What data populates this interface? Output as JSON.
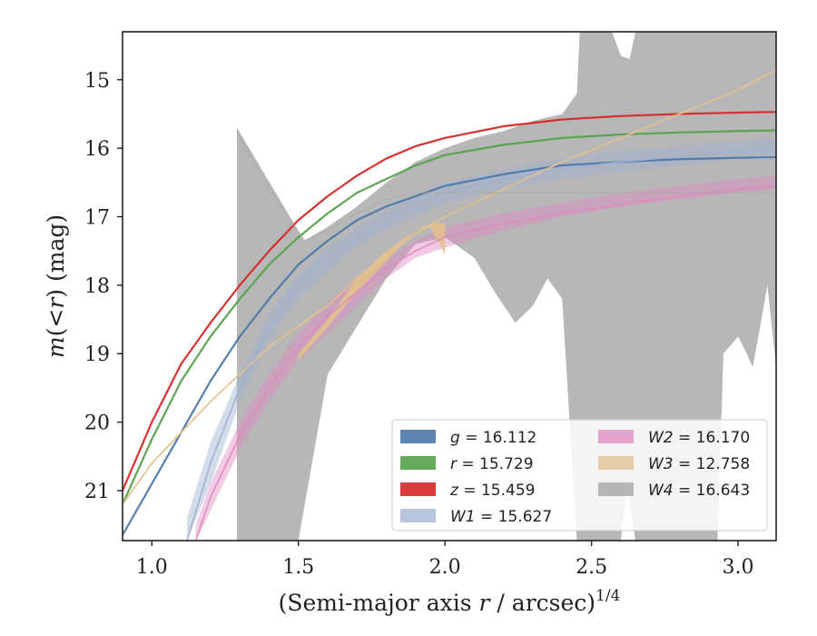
{
  "chart_data": {
    "type": "line",
    "title": "",
    "xlabel": "(Semi-major axis r / arcsec)^1/4",
    "xlabel_parts": {
      "pre": "(Semi-major axis ",
      "var": "r",
      "post": " / arcsec)",
      "exp": "1/4"
    },
    "ylabel": "m(<r) (mag)",
    "ylabel_parts": {
      "var1": "m",
      "mid": "(<",
      "var2": "r",
      "post": ") (mag)"
    },
    "xlim": [
      0.9,
      3.13
    ],
    "ylim": [
      21.73,
      14.3
    ],
    "y_inverted": true,
    "xticks": [
      1.0,
      1.5,
      2.0,
      2.5,
      3.0
    ],
    "xtick_labels": [
      "1.0",
      "1.5",
      "2.0",
      "2.5",
      "3.0"
    ],
    "yticks": [
      15,
      16,
      17,
      18,
      19,
      20,
      21
    ],
    "ytick_labels": [
      "15",
      "16",
      "17",
      "18",
      "19",
      "20",
      "21"
    ],
    "grid": false,
    "legend_placement": "lower-right",
    "legend_columns": 2,
    "series": [
      {
        "name": "g = 16.112",
        "label_var": "g",
        "label_val": "16.112",
        "color": "#4c78a8",
        "x": [
          0.9,
          1.0,
          1.1,
          1.2,
          1.3,
          1.4,
          1.5,
          1.6,
          1.7,
          1.8,
          1.9,
          2.0,
          2.2,
          2.4,
          2.6,
          2.8,
          3.0,
          3.13
        ],
        "y": [
          21.65,
          20.9,
          20.15,
          19.4,
          18.75,
          18.2,
          17.7,
          17.35,
          17.05,
          16.85,
          16.7,
          16.55,
          16.38,
          16.25,
          16.2,
          16.16,
          16.14,
          16.13
        ]
      },
      {
        "name": "r = 15.729",
        "label_var": "r",
        "label_val": "15.729",
        "color": "#54a24b",
        "x": [
          0.9,
          1.0,
          1.1,
          1.2,
          1.3,
          1.4,
          1.5,
          1.6,
          1.7,
          1.8,
          1.9,
          2.0,
          2.2,
          2.4,
          2.6,
          2.8,
          3.0,
          3.13
        ],
        "y": [
          21.2,
          20.25,
          19.4,
          18.75,
          18.2,
          17.7,
          17.3,
          16.95,
          16.65,
          16.45,
          16.25,
          16.1,
          15.95,
          15.85,
          15.8,
          15.77,
          15.75,
          15.74
        ]
      },
      {
        "name": "z = 15.459",
        "label_var": "z",
        "label_val": "15.459",
        "color": "#d62728",
        "x": [
          0.9,
          1.0,
          1.1,
          1.2,
          1.3,
          1.4,
          1.5,
          1.6,
          1.7,
          1.8,
          1.9,
          2.0,
          2.2,
          2.4,
          2.6,
          2.8,
          3.0,
          3.13
        ],
        "y": [
          21.0,
          20.0,
          19.15,
          18.55,
          18.0,
          17.5,
          17.05,
          16.7,
          16.4,
          16.15,
          15.97,
          15.85,
          15.68,
          15.58,
          15.53,
          15.5,
          15.48,
          15.47
        ]
      },
      {
        "name": "W1 = 15.627",
        "label_var": "W1",
        "label_val": "15.627",
        "color": "#9fb0d0",
        "x": [
          1.12,
          1.2,
          1.3,
          1.4,
          1.5,
          1.6,
          1.7,
          1.8,
          1.9,
          2.0,
          2.2,
          2.4,
          2.6,
          2.8,
          3.0,
          3.13
        ],
        "y": [
          21.73,
          20.6,
          19.5,
          18.6,
          18.0,
          17.6,
          17.3,
          17.05,
          16.85,
          16.65,
          16.45,
          16.3,
          16.2,
          16.12,
          16.05,
          16.0
        ]
      },
      {
        "name": "W2 = 16.170",
        "label_var": "W2",
        "label_val": "16.170",
        "color": "#e08ac0",
        "x": [
          1.15,
          1.2,
          1.3,
          1.4,
          1.5,
          1.6,
          1.7,
          1.8,
          1.9,
          2.0,
          2.2,
          2.4,
          2.6,
          2.8,
          3.0,
          3.13
        ],
        "y": [
          21.73,
          21.1,
          20.2,
          19.5,
          18.9,
          18.45,
          18.1,
          17.75,
          17.5,
          17.3,
          17.1,
          16.95,
          16.82,
          16.7,
          16.6,
          16.55
        ]
      },
      {
        "name": "W3 = 12.758",
        "label_var": "W3",
        "label_val": "12.758",
        "color": "#e3c08e",
        "x": [
          0.9,
          1.0,
          1.2,
          1.4,
          1.6,
          1.7,
          1.8,
          1.9,
          2.0,
          2.2,
          2.4,
          2.6,
          2.8,
          3.0,
          3.13
        ],
        "y": [
          21.2,
          20.6,
          19.7,
          18.9,
          18.3,
          17.9,
          17.55,
          17.25,
          17.0,
          16.6,
          16.2,
          15.85,
          15.5,
          15.15,
          14.85
        ]
      },
      {
        "name": "W4 = 16.643",
        "label_var": "W4",
        "label_val": "16.643",
        "color": "#aaaaaa",
        "x": [
          1.29,
          1.4,
          1.52,
          1.6,
          1.7,
          1.8,
          1.9,
          2.0,
          2.2,
          2.4,
          2.6,
          2.8,
          3.0,
          3.13
        ],
        "y": [
          15.75,
          16.6,
          17.35,
          17.2,
          16.95,
          16.75,
          16.65,
          16.65,
          16.65,
          16.65,
          16.65,
          16.65,
          16.65,
          16.65
        ]
      }
    ],
    "band_w4_upper": {
      "x": [
        1.29,
        1.52,
        1.6,
        1.7,
        1.8,
        1.9,
        2.0,
        2.1,
        2.2,
        2.3,
        2.4,
        2.45,
        2.46,
        2.5,
        2.55,
        2.57,
        2.6,
        2.63,
        2.65,
        2.7,
        2.8,
        2.9,
        3.0,
        3.1,
        3.13
      ],
      "y": [
        15.7,
        17.35,
        17.15,
        16.85,
        16.5,
        16.2,
        16.0,
        15.85,
        15.75,
        15.6,
        15.5,
        15.2,
        14.3,
        14.3,
        14.3,
        14.3,
        14.65,
        14.7,
        14.3,
        14.3,
        14.3,
        14.3,
        14.3,
        14.3,
        14.3
      ]
    },
    "band_w4_lower": {
      "x": [
        1.29,
        1.3,
        1.4,
        1.5,
        1.6,
        1.7,
        1.8,
        1.9,
        2.0,
        2.1,
        2.17,
        2.24,
        2.3,
        2.35,
        2.4,
        2.45,
        2.5,
        2.55,
        2.6,
        2.62,
        2.65,
        2.7,
        2.8,
        2.9,
        2.93,
        2.95,
        3.0,
        3.03,
        3.05,
        3.08,
        3.1,
        3.13
      ],
      "y": [
        21.73,
        21.73,
        21.73,
        21.73,
        19.3,
        18.6,
        17.9,
        17.4,
        17.3,
        17.6,
        18.1,
        18.55,
        18.3,
        17.9,
        18.2,
        21.73,
        21.73,
        21.73,
        21.73,
        20.9,
        21.73,
        21.73,
        21.73,
        21.73,
        21.73,
        19.0,
        18.75,
        19.0,
        19.2,
        18.5,
        18.0,
        19.2
      ]
    },
    "band_w3": {
      "x_upper": [
        1.5,
        1.6,
        1.7,
        1.8,
        1.9,
        1.95,
        2.0
      ],
      "y_upper": [
        19.0,
        18.5,
        17.9,
        17.5,
        17.2,
        17.1,
        17.1
      ],
      "x_lower": [
        2.0,
        1.95,
        1.9,
        1.8,
        1.7,
        1.6,
        1.5
      ],
      "y_lower": [
        17.55,
        17.15,
        17.2,
        17.65,
        18.1,
        18.6,
        19.1
      ]
    },
    "band_w1": {
      "x_upper": [
        1.12,
        1.2,
        1.3,
        1.4,
        1.5,
        1.6,
        1.7,
        1.8,
        1.9,
        2.0,
        2.2,
        2.4,
        2.6,
        2.8,
        3.0,
        3.13
      ],
      "y_upper": [
        21.4,
        20.3,
        19.3,
        18.4,
        17.85,
        17.45,
        17.15,
        16.9,
        16.7,
        16.5,
        16.3,
        16.15,
        16.05,
        15.97,
        15.9,
        15.85
      ],
      "x_lower": [
        3.13,
        3.0,
        2.8,
        2.6,
        2.4,
        2.2,
        2.0,
        1.9,
        1.8,
        1.7,
        1.6,
        1.5,
        1.4,
        1.3,
        1.2,
        1.12
      ],
      "y_lower": [
        16.1,
        16.15,
        16.25,
        16.35,
        16.45,
        16.6,
        16.8,
        17.0,
        17.2,
        17.45,
        17.8,
        18.2,
        18.8,
        19.7,
        20.9,
        21.73
      ]
    },
    "band_w2": {
      "x_upper": [
        1.15,
        1.2,
        1.3,
        1.4,
        1.5,
        1.6,
        1.7,
        1.8,
        1.9,
        2.0,
        2.2,
        2.4,
        2.6,
        2.8,
        3.0,
        3.13
      ],
      "y_upper": [
        21.5,
        20.9,
        20.0,
        19.3,
        18.7,
        18.25,
        17.9,
        17.6,
        17.35,
        17.15,
        16.95,
        16.8,
        16.65,
        16.55,
        16.45,
        16.4
      ],
      "x_lower": [
        3.13,
        3.0,
        2.8,
        2.6,
        2.4,
        2.2,
        2.0,
        1.9,
        1.8,
        1.7,
        1.6,
        1.5,
        1.4,
        1.3,
        1.2,
        1.15
      ],
      "y_lower": [
        16.6,
        16.65,
        16.75,
        16.85,
        17.0,
        17.2,
        17.45,
        17.6,
        17.9,
        18.3,
        18.7,
        19.1,
        19.7,
        20.4,
        21.3,
        21.73
      ]
    }
  }
}
